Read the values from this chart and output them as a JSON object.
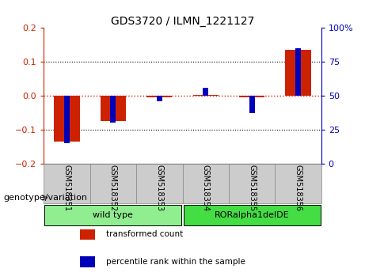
{
  "title": "GDS3720 / ILMN_1221127",
  "samples": [
    "GSM518351",
    "GSM518352",
    "GSM518353",
    "GSM518354",
    "GSM518355",
    "GSM518356"
  ],
  "red_values": [
    -0.135,
    -0.075,
    -0.004,
    0.003,
    -0.004,
    0.135
  ],
  "blue_values_pct": [
    15,
    30,
    46,
    56,
    37,
    85
  ],
  "ylim_left": [
    -0.2,
    0.2
  ],
  "ylim_right": [
    0,
    100
  ],
  "yticks_left": [
    -0.2,
    -0.1,
    0,
    0.1,
    0.2
  ],
  "yticks_right": [
    0,
    25,
    50,
    75,
    100
  ],
  "groups": [
    {
      "label": "wild type",
      "start": 0,
      "end": 2,
      "color": "#90EE90"
    },
    {
      "label": "RORalpha1delDE",
      "start": 3,
      "end": 5,
      "color": "#44DD44"
    }
  ],
  "group_label": "genotype/variation",
  "legend_red": "transformed count",
  "legend_blue": "percentile rank within the sample",
  "red_bar_width": 0.55,
  "blue_bar_width": 0.12,
  "red_color": "#CC2200",
  "blue_color": "#0000BB",
  "zero_line_color": "#CC2200",
  "grid_color": "black",
  "left_axis_color": "#CC2200",
  "right_axis_color": "#0000BB",
  "bg_color": "#FFFFFF",
  "plot_bg": "#FFFFFF",
  "tick_label_bg": "#CCCCCC",
  "tick_label_bg_alt": "#BBBBBB"
}
